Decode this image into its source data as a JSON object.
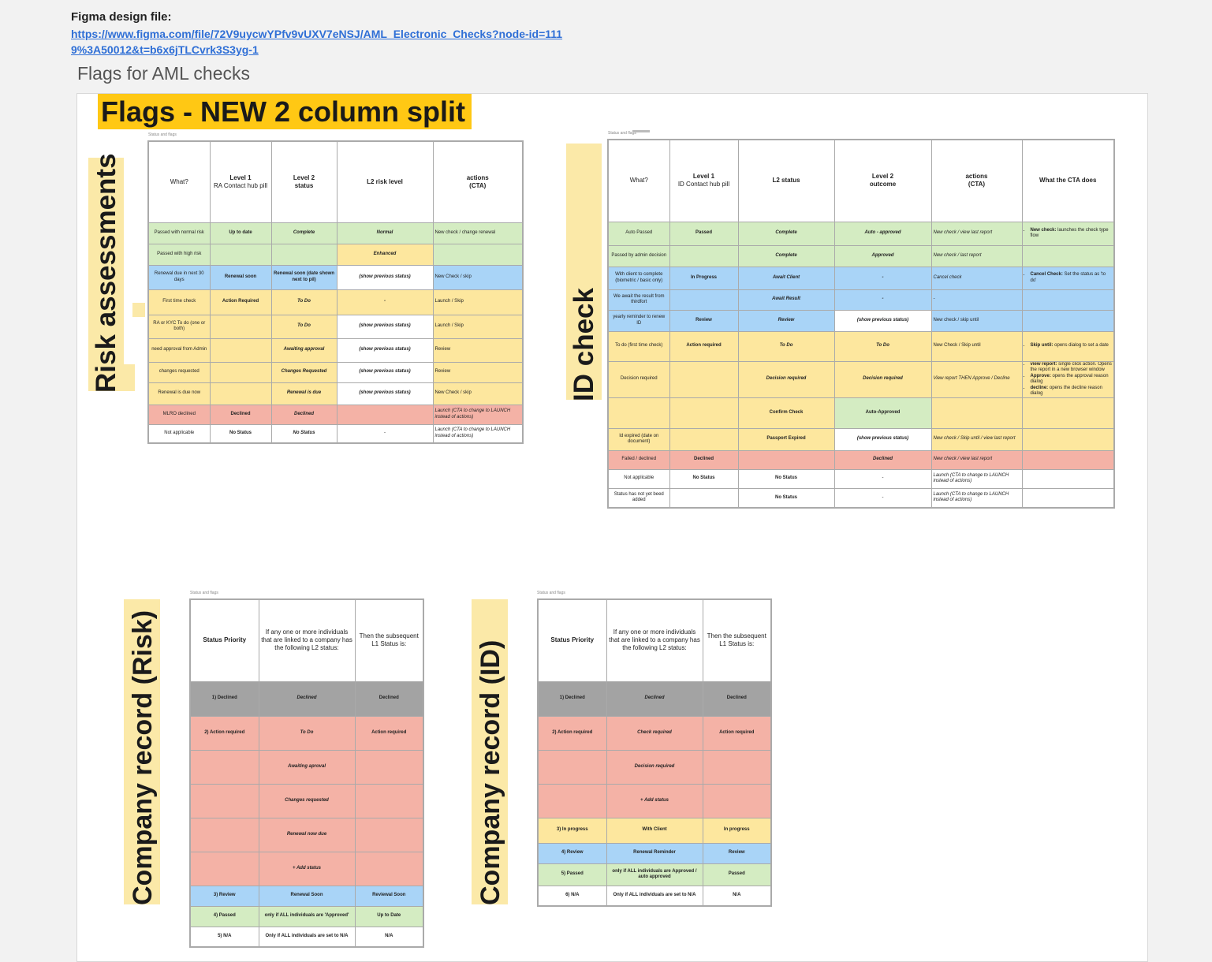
{
  "header": {
    "label": "Figma design file:",
    "link": "https://www.figma.com/file/72V9uycwYPfv9vUXV7eNSJ/AML_Electronic_Checks?node-id=1119%3A50012&t=b6x6jTLCvrk3S3yg-1"
  },
  "page_title": "Flags for AML checks",
  "banner_title": "Flags - NEW 2 column split",
  "section_labels": {
    "risk": "Risk assessments",
    "id": "ID check",
    "company_risk": "Company record (Risk)",
    "company_id": "Company record (ID)"
  },
  "tiny_caption": "Status and flags",
  "colors": {
    "green": "#d4ecc2",
    "blue": "#a9d4f7",
    "yellow": "#fde79e",
    "red": "#f4b2a6",
    "grey": "#a3a3a3",
    "banner": "#ffc814",
    "label_bg": "#fbe9a8"
  },
  "risk_table": {
    "headers": [
      {
        "t": "What?"
      },
      {
        "t": "Level 1",
        "s": "RA Contact hub pill"
      },
      {
        "t": "Level 2",
        "s2": "status"
      },
      {
        "t": "L2 risk level"
      },
      {
        "t": "actions",
        "s2": "(CTA)"
      }
    ],
    "rows": [
      {
        "c": "g",
        "cells": [
          "Passed with normal risk",
          "Up to date",
          "Complete",
          "Normal",
          "New check / change renewal"
        ],
        "bg": [
          "g",
          "g",
          "g",
          "g",
          "g"
        ]
      },
      {
        "c": "g",
        "cells": [
          "Passed with high risk",
          "",
          "",
          "Enhanced",
          ""
        ],
        "bg": [
          "g",
          "g",
          "g",
          "y",
          "g"
        ]
      },
      {
        "c": "bl",
        "cells": [
          "Renewal due in next 30 days",
          "Renewal soon",
          "Renewal soon (date shown next to pil)",
          "(show previous status)",
          "New Check  / skip"
        ],
        "bg": [
          "bl",
          "bl",
          "bl",
          "w",
          "bl"
        ]
      },
      {
        "c": "y",
        "cells": [
          "First time check",
          "Action Required",
          "To Do",
          "-",
          "Launch / Skip"
        ],
        "bg": [
          "y",
          "y",
          "y",
          "y",
          "y"
        ]
      },
      {
        "c": "y",
        "cells": [
          "RA or KYC To do (one or both)",
          "",
          "To Do",
          "(show previous status)",
          "Launch / Skip"
        ],
        "bg": [
          "y",
          "y",
          "y",
          "w",
          "y"
        ]
      },
      {
        "c": "y",
        "cells": [
          "need approval from Admin",
          "",
          "Awaiting approval",
          "(show previous status)",
          "Review"
        ],
        "bg": [
          "y",
          "y",
          "y",
          "w",
          "y"
        ]
      },
      {
        "c": "y",
        "cells": [
          "changes requested",
          "",
          "Changes Requested",
          "(show previous status)",
          "Review"
        ],
        "bg": [
          "y",
          "y",
          "y",
          "w",
          "y"
        ]
      },
      {
        "c": "y",
        "cells": [
          "Renewal is due now",
          "",
          "Renewal is due",
          "(show previous status)",
          "New Check / skip"
        ],
        "bg": [
          "y",
          "y",
          "y",
          "w",
          "y"
        ]
      },
      {
        "c": "r",
        "cells": [
          "MLRO declined",
          "Declined",
          "Declined",
          "",
          "Launch (CTA to change to LAUNCH instead of actions)"
        ],
        "bg": [
          "r",
          "r",
          "r",
          "r",
          "r"
        ]
      },
      {
        "c": "w",
        "cells": [
          "Not applicable",
          "No Status",
          "No Status",
          "-",
          "Launch (CTA to change to LAUNCH instead of actions)"
        ],
        "bg": [
          "w",
          "w",
          "w",
          "w",
          "w"
        ]
      }
    ]
  },
  "id_table": {
    "headers": [
      {
        "t": "What?"
      },
      {
        "t": "Level 1",
        "s": "ID Contact hub pill"
      },
      {
        "t": "L2 status"
      },
      {
        "t": "Level 2",
        "s2": "outcome"
      },
      {
        "t": "actions",
        "s2": "(CTA)"
      },
      {
        "t": "What the CTA does"
      }
    ],
    "rows": [
      {
        "cells": [
          "Auto Passed",
          "Passed",
          "Complete",
          "Auto - approved",
          "New check /  view last report",
          "New check: launches the check type flow"
        ],
        "bg": [
          "g",
          "g",
          "g",
          "g",
          "g",
          "g"
        ]
      },
      {
        "cells": [
          "Passed by admin decision",
          "",
          "Complete",
          "Approved",
          "New check /  last report",
          ""
        ],
        "bg": [
          "g",
          "g",
          "g",
          "g",
          "g",
          "g"
        ]
      },
      {
        "cells": [
          "With client to complete (biometric / basic only)",
          "In Progress",
          "Await Client",
          "-",
          "Cancel check",
          "Cancel Check: Set the status as 'to do'"
        ],
        "bg": [
          "bl",
          "bl",
          "bl",
          "bl",
          "bl",
          "bl"
        ]
      },
      {
        "cells": [
          "We await the result from thirdfort",
          "",
          "Await Result",
          "-",
          "-",
          ""
        ],
        "bg": [
          "bl",
          "bl",
          "bl",
          "bl",
          "bl",
          "bl"
        ]
      },
      {
        "cells": [
          "yearly reminder to renew ID",
          "Review",
          "Review",
          "(show previous status)",
          "New check / skip until",
          ""
        ],
        "bg": [
          "bl",
          "bl",
          "bl",
          "w",
          "bl",
          "bl"
        ]
      },
      {
        "cells": [
          "To do (first time check)",
          "Action required",
          "To Do",
          "To Do",
          "New Check / Skip until",
          "Skip until: opens dialog to set a date"
        ],
        "bg": [
          "y",
          "y",
          "y",
          "y",
          "y",
          "y"
        ]
      },
      {
        "cells": [
          "Decision required",
          "",
          "Decision required",
          "Decision required",
          "View report THEN  Approve / Decline",
          ""
        ],
        "bg": [
          "y",
          "y",
          "y",
          "y",
          "y",
          "y"
        ]
      },
      {
        "cells": [
          "",
          "",
          "Confirm Check",
          "Auto-Approved",
          "",
          ""
        ],
        "bg": [
          "y",
          "y",
          "y",
          "g",
          "y",
          "y"
        ]
      },
      {
        "cells": [
          "Id expired (date on document)",
          "",
          "Passport Expired",
          "(show previous status)",
          "New check  / Skip until / view last report",
          ""
        ],
        "bg": [
          "y",
          "y",
          "y",
          "w",
          "y",
          "y"
        ]
      },
      {
        "cells": [
          "Failed / declined",
          "Declined",
          "",
          "Declined",
          "New check / view last report",
          ""
        ],
        "bg": [
          "r",
          "r",
          "r",
          "r",
          "r",
          "r"
        ]
      },
      {
        "cells": [
          "Not applicable",
          "No Status",
          "No Status",
          "-",
          "Launch (CTA to change to LAUNCH instead of actions)",
          ""
        ],
        "bg": [
          "w",
          "w",
          "w",
          "w",
          "w",
          "w"
        ]
      },
      {
        "cells": [
          "Status has not yet beed added",
          "",
          "No Status",
          "-",
          "Launch  (CTA to change to LAUNCH instead of actions)",
          ""
        ],
        "bg": [
          "w",
          "w",
          "w",
          "w",
          "w",
          "w"
        ]
      }
    ],
    "decision_cta": [
      {
        "b": "view report:",
        "t": " single click action. Opens the report in a new browser window"
      },
      {
        "b": "Approve:",
        "t": " opens the approval reason dialog"
      },
      {
        "b": "decline:",
        "t": " opens the decline reason dialog"
      }
    ]
  },
  "company_risk_table": {
    "headers": [
      "Status Priority",
      "If any one or more individuals that are linked to a company has the following L2 status:",
      "Then the subsequent L1 Status is:"
    ],
    "rows": [
      {
        "cells": [
          "1) Declined",
          "Declined",
          "Declined"
        ],
        "c": "gr"
      },
      {
        "cells": [
          "2) Action required",
          "To Do",
          "Action required"
        ],
        "c": "r"
      },
      {
        "cells": [
          "",
          "Awaiting aproval",
          ""
        ],
        "c": "r"
      },
      {
        "cells": [
          "",
          "Changes requested",
          ""
        ],
        "c": "r"
      },
      {
        "cells": [
          "",
          "Renewal now due",
          ""
        ],
        "c": "r"
      },
      {
        "cells": [
          "",
          "+ Add status",
          ""
        ],
        "c": "r"
      },
      {
        "cells": [
          "3) Review",
          "Renewal Soon",
          "Reviewal Soon"
        ],
        "c": "bl"
      },
      {
        "cells": [
          "4) Passed",
          "only if ALL individuals are 'Approved'",
          "Up to Date"
        ],
        "c": "g"
      },
      {
        "cells": [
          "5) N/A",
          "Only if ALL individuals are set to N/A",
          "N/A"
        ],
        "c": "w"
      }
    ]
  },
  "company_id_table": {
    "headers": [
      "Status Priority",
      "If any one or more individuals that are linked to a company has the following L2 status:",
      "Then the subsequent L1 Status is:"
    ],
    "rows": [
      {
        "cells": [
          "1) Declined",
          "Declined",
          "Declined"
        ],
        "c": "gr"
      },
      {
        "cells": [
          "2) Action required",
          "Check required",
          "Action required"
        ],
        "c": "r"
      },
      {
        "cells": [
          "",
          "Decision required",
          ""
        ],
        "c": "r"
      },
      {
        "cells": [
          "",
          "+ Add status",
          ""
        ],
        "c": "r"
      },
      {
        "cells": [
          "3) In progress",
          "With Client",
          "In progress"
        ],
        "c": "y"
      },
      {
        "cells": [
          "4) Review",
          "Renewal Reminder",
          "Review"
        ],
        "c": "bl"
      },
      {
        "cells": [
          "5) Passed",
          "only if ALL individuals are Approved / auto approved",
          "Passed"
        ],
        "c": "g"
      },
      {
        "cells": [
          "6) N/A",
          "Only if ALL individuals are set to N/A",
          "N/A"
        ],
        "c": "w"
      }
    ]
  }
}
